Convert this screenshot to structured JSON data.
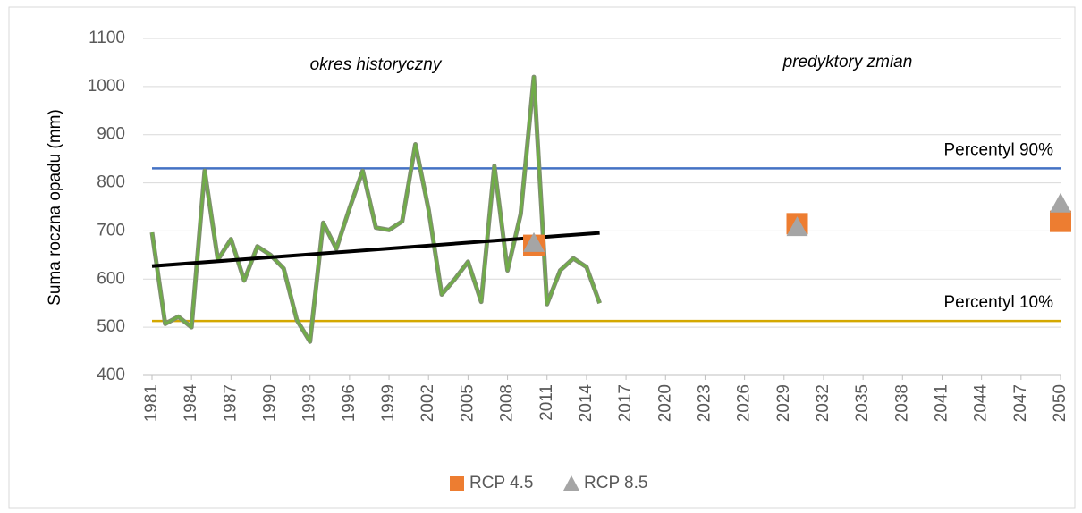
{
  "chart_data": {
    "type": "line",
    "y_label": "Suma roczna opadu (mm)",
    "annotations": [
      "okres historyczny",
      "predyktory zmian"
    ],
    "xlim": [
      1981,
      2050
    ],
    "xticks": [
      1981,
      1984,
      1987,
      1990,
      1993,
      1996,
      1999,
      2002,
      2005,
      2008,
      2011,
      2014,
      2017,
      2020,
      2023,
      2026,
      2029,
      2032,
      2035,
      2038,
      2041,
      2044,
      2047,
      2050
    ],
    "ylim": [
      400,
      1100
    ],
    "yticks": [
      400,
      500,
      600,
      700,
      800,
      900,
      1000,
      1100
    ],
    "grid": true,
    "legend": "bottom",
    "series": [
      {
        "color": "#70ad47",
        "x": [
          1981,
          1982,
          1983,
          1984,
          1985,
          1986,
          1987,
          1988,
          1989,
          1990,
          1991,
          1992,
          1993,
          1994,
          1995,
          1996,
          1997,
          1998,
          1999,
          2000,
          2001,
          2002,
          2003,
          2004,
          2005,
          2006,
          2007,
          2008,
          2009,
          2010,
          2011,
          2012,
          2013,
          2014,
          2015
        ],
        "values": [
          697,
          507,
          522,
          500,
          825,
          640,
          683,
          597,
          668,
          650,
          622,
          515,
          470,
          717,
          663,
          747,
          825,
          707,
          702,
          720,
          880,
          745,
          568,
          600,
          636,
          553,
          835,
          618,
          735,
          1020,
          548,
          618,
          643,
          625,
          550
        ]
      },
      {
        "name": "RCP 4.5",
        "color": "#ed7d31",
        "marker": "square",
        "x": [
          2010,
          2030,
          2050
        ],
        "values": [
          670,
          715,
          720
        ]
      },
      {
        "name": "RCP 8.5",
        "color": "#a5a5a5",
        "marker": "triangle",
        "x": [
          2010,
          2030,
          2050
        ],
        "values": [
          675,
          708,
          757
        ]
      }
    ],
    "trend": {
      "color": "#000000",
      "x": [
        1981,
        2015
      ],
      "values": [
        627,
        696
      ]
    },
    "reference_lines": [
      {
        "label": "Percentyl 90%",
        "value": 830,
        "color": "#4472c4"
      },
      {
        "label": "Percentyl 10%",
        "value": 513,
        "color": "#d4a800"
      }
    ]
  }
}
